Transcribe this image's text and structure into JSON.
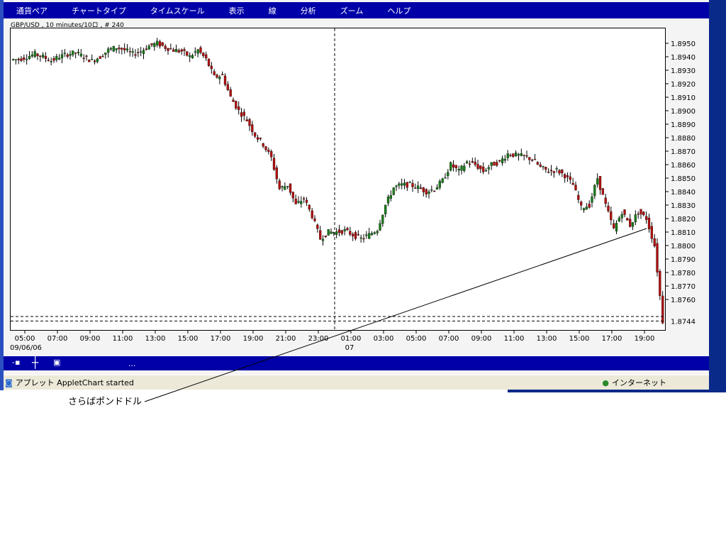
{
  "menu": [
    "通貨ペア",
    "チャートタイプ",
    "タイムスケール",
    "表示",
    "線",
    "分析",
    "ズーム",
    "ヘルプ"
  ],
  "chart_title": "GBP/USD , 10 minutes/10ロ , # 240",
  "toolbar": {
    "dots": "..."
  },
  "status": {
    "text": "アプレット AppletChart started",
    "zone": "インターネット"
  },
  "annotation": "さらばポンドドル",
  "chart_data": {
    "type": "candlestick",
    "title": "GBP/USD , 10 minutes/10ロ , # 240",
    "ylim": [
      1.8735,
      1.8962
    ],
    "y_ticks": [
      "1.8950",
      "1.8940",
      "1.8930",
      "1.8920",
      "1.8910",
      "1.8900",
      "1.8890",
      "1.8880",
      "1.8870",
      "1.8860",
      "1.8850",
      "1.8840",
      "1.8830",
      "1.8820",
      "1.8810",
      "1.8800",
      "1.8790",
      "1.8780",
      "1.8770",
      "1.8760"
    ],
    "last_price_label": "1.8744",
    "x_ticks": [
      "05:00",
      "07:00",
      "09:00",
      "11:00",
      "13:00",
      "15:00",
      "17:00",
      "19:00",
      "21:00",
      "23:00",
      "01:00",
      "03:00",
      "05:00",
      "07:00",
      "09:00",
      "11:00",
      "13:00",
      "15:00",
      "17:00",
      "19:00"
    ],
    "date_labels": [
      "09/06/06",
      "07"
    ],
    "approx_close_every_30min_from_0430": [
      1.8938,
      1.894,
      1.8942,
      1.894,
      1.8937,
      1.894,
      1.8942,
      1.8943,
      1.894,
      1.8937,
      1.894,
      1.8945,
      1.8947,
      1.8945,
      1.8942,
      1.8944,
      1.8948,
      1.895,
      1.8947,
      1.8945,
      1.8944,
      1.894,
      1.8945,
      1.8938,
      1.8925,
      1.8926,
      1.891,
      1.89,
      1.8893,
      1.8882,
      1.8875,
      1.8865,
      1.8842,
      1.8845,
      1.883,
      1.8835,
      1.8822,
      1.8805,
      1.881,
      1.881,
      1.8811,
      1.8808,
      1.8805,
      1.8808,
      1.8812,
      1.883,
      1.8843,
      1.8845,
      1.8845,
      1.8843,
      1.884,
      1.8842,
      1.8848,
      1.886,
      1.8855,
      1.8862,
      1.886,
      1.8855,
      1.886,
      1.8862,
      1.8868,
      1.8867,
      1.8866,
      1.8864,
      1.8858,
      1.8855,
      1.8856,
      1.8852,
      1.8845,
      1.8828,
      1.883,
      1.885,
      1.883,
      1.8812,
      1.8825,
      1.8815,
      1.8825,
      1.882,
      1.88,
      1.8744
    ],
    "colors": {
      "up": "#1a7a1a",
      "down": "#b01010",
      "last_price": "#0000c0"
    }
  }
}
